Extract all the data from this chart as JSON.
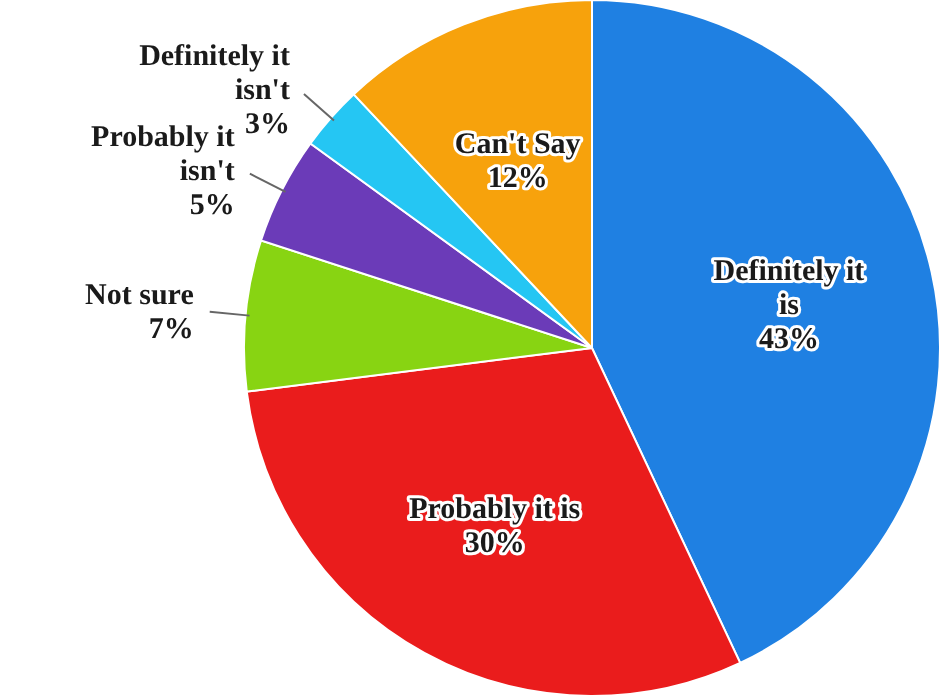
{
  "chart_data": {
    "type": "pie",
    "categories": [
      "Definitely it is",
      "Probably it is",
      "Not sure",
      "Probably it isn't",
      "Definitely it isn't",
      "Can't Say"
    ],
    "values": [
      43,
      30,
      7,
      5,
      3,
      12
    ],
    "value_labels": [
      "43%",
      "30%",
      "7%",
      "5%",
      "3%",
      "12%"
    ],
    "colors": [
      "#1f80e2",
      "#ea1c1c",
      "#88d412",
      "#6b3bb8",
      "#25c6f3",
      "#f7a20c"
    ]
  }
}
